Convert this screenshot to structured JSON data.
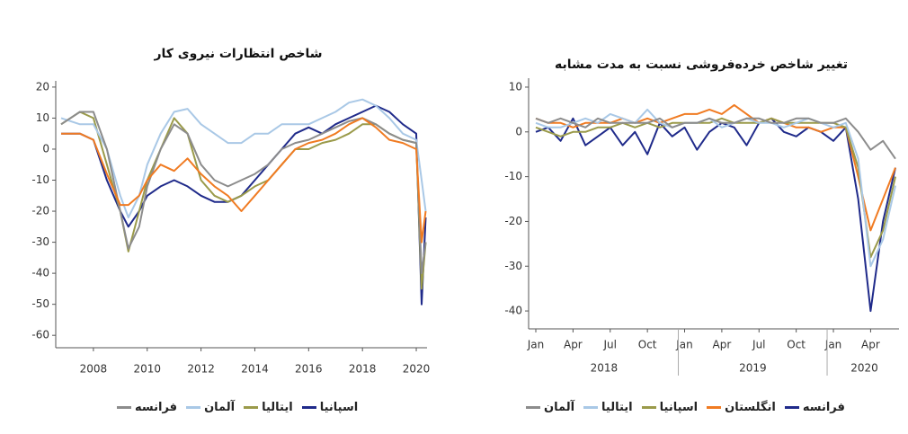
{
  "chart_data": [
    {
      "type": "line",
      "title": "شاخص انتظارات نیروی کار",
      "x": [
        2006.8,
        2007.5,
        2008.0,
        2008.5,
        2009.0,
        2009.3,
        2009.7,
        2010.0,
        2010.5,
        2011.0,
        2011.5,
        2012.0,
        2012.5,
        2013.0,
        2013.5,
        2014.0,
        2014.5,
        2015.0,
        2015.5,
        2016.0,
        2016.5,
        2017.0,
        2017.5,
        2018.0,
        2018.5,
        2019.0,
        2019.5,
        2020.0,
        2020.2,
        2020.35
      ],
      "series": [
        {
          "name": "اسپانیا",
          "color": "#1f2a8a",
          "values": [
            5,
            5,
            3,
            -10,
            -20,
            -25,
            -20,
            -15,
            -12,
            -10,
            -12,
            -15,
            -17,
            -17,
            -15,
            -10,
            -5,
            0,
            5,
            7,
            5,
            8,
            10,
            12,
            14,
            12,
            8,
            5,
            -50,
            -22
          ]
        },
        {
          "name": "ایتالیا",
          "color": "#9a9a4a",
          "values": [
            8,
            12,
            10,
            -5,
            -20,
            -33,
            -20,
            -10,
            0,
            10,
            5,
            -10,
            -15,
            -17,
            -15,
            -12,
            -10,
            -5,
            0,
            0,
            2,
            3,
            5,
            8,
            8,
            5,
            3,
            2,
            -45,
            -30
          ]
        },
        {
          "name": "آلمان",
          "color": "#a9c8e6",
          "values": [
            10,
            8,
            8,
            0,
            -15,
            -22,
            -15,
            -5,
            5,
            12,
            13,
            8,
            5,
            2,
            2,
            5,
            5,
            8,
            8,
            8,
            10,
            12,
            15,
            16,
            14,
            10,
            5,
            3,
            -10,
            -20
          ]
        },
        {
          "name": "فرانسه",
          "color": "#8c8c8c",
          "values": [
            8,
            12,
            12,
            0,
            -20,
            -32,
            -25,
            -12,
            0,
            8,
            5,
            -5,
            -10,
            -12,
            -10,
            -8,
            -5,
            0,
            2,
            3,
            5,
            7,
            9,
            10,
            8,
            5,
            3,
            2,
            -40,
            -30
          ]
        },
        {
          "color": "#f07b22",
          "values": [
            5,
            5,
            3,
            -8,
            -18,
            -18,
            -15,
            -10,
            -5,
            -7,
            -3,
            -8,
            -12,
            -15,
            -20,
            -15,
            -10,
            -5,
            0,
            2,
            3,
            5,
            8,
            10,
            7,
            3,
            2,
            0,
            -30,
            -20
          ]
        }
      ],
      "xlim": [
        2006.6,
        2020.4
      ],
      "xticks": [
        2008,
        2010,
        2012,
        2014,
        2016,
        2018,
        2020
      ],
      "ylim": [
        -64,
        22
      ],
      "yticks": [
        -60,
        -50,
        -40,
        -30,
        -20,
        -10,
        0,
        10,
        20
      ]
    },
    {
      "type": "line",
      "title": "تغییر شاخص خرده‌فروشی نسبت به مدت مشابه",
      "categories": [
        "Jan",
        null,
        null,
        "Apr",
        null,
        null,
        "Jul",
        null,
        null,
        "Oct",
        null,
        null,
        "Jan",
        null,
        null,
        "Apr",
        null,
        null,
        "Jul",
        null,
        null,
        "Oct",
        null,
        null,
        "Jan",
        null,
        null,
        "Apr",
        null,
        null
      ],
      "x_groups": [
        {
          "label": "2018",
          "start": 0,
          "end": 11
        },
        {
          "label": "2019",
          "start": 12,
          "end": 23
        },
        {
          "label": "2020",
          "start": 24,
          "end": 29
        }
      ],
      "series": [
        {
          "name": "فرانسه",
          "color": "#1f2a8a",
          "values": [
            0,
            1,
            -2,
            3,
            -3,
            -1,
            1,
            -3,
            0,
            -5,
            2,
            -1,
            1,
            -4,
            0,
            2,
            1,
            -3,
            2,
            3,
            0,
            -1,
            1,
            0,
            -2,
            1,
            -15,
            -40,
            -20,
            -8
          ]
        },
        {
          "name": "انگلستان",
          "color": "#f07b22",
          "values": [
            3,
            2,
            2,
            1,
            2,
            2,
            2,
            3,
            2,
            3,
            2,
            3,
            4,
            4,
            5,
            4,
            6,
            4,
            2,
            3,
            2,
            1,
            1,
            0,
            1,
            1,
            -10,
            -22,
            -15,
            -8
          ]
        },
        {
          "name": "اسپانیا",
          "color": "#9a9a4a",
          "values": [
            1,
            0,
            -1,
            0,
            0,
            1,
            1,
            2,
            1,
            2,
            1,
            2,
            2,
            2,
            2,
            3,
            2,
            2,
            2,
            3,
            2,
            2,
            2,
            2,
            2,
            1,
            -8,
            -28,
            -22,
            -10
          ]
        },
        {
          "name": "ایتالیا",
          "color": "#a9c8e6",
          "values": [
            2,
            1,
            1,
            2,
            3,
            2,
            4,
            3,
            2,
            5,
            2,
            1,
            2,
            2,
            3,
            1,
            2,
            3,
            2,
            2,
            1,
            2,
            3,
            2,
            1,
            2,
            -6,
            -30,
            -24,
            -12
          ]
        },
        {
          "name": "آلمان",
          "color": "#8c8c8c",
          "values": [
            3,
            2,
            3,
            2,
            1,
            3,
            2,
            2,
            2,
            2,
            3,
            1,
            2,
            2,
            3,
            2,
            2,
            3,
            3,
            2,
            2,
            3,
            3,
            2,
            2,
            3,
            0,
            -4,
            -2,
            -6
          ]
        }
      ],
      "ylim": [
        -44,
        12
      ],
      "yticks": [
        -40,
        -30,
        -20,
        -10,
        0,
        10
      ]
    }
  ]
}
